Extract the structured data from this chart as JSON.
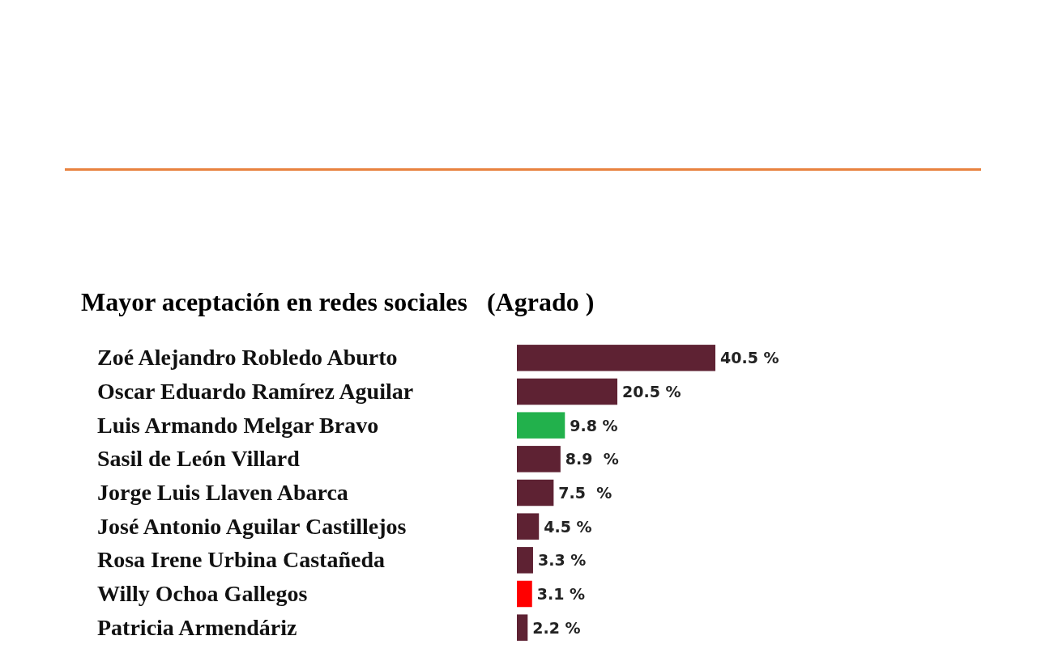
{
  "chart_data": {
    "type": "bar",
    "orientation": "horizontal",
    "title": "Mayor aceptación en redes sociales   (Agrado )",
    "categories": [
      "Zoé Alejandro Robledo Aburto",
      "Oscar Eduardo Ramírez Aguilar",
      "Luis Armando Melgar Bravo",
      "Sasil de León Villard",
      "Jorge Luis Llaven Abarca",
      "José Antonio Aguilar Castillejos",
      "Rosa Irene Urbina Castañeda",
      "Willy Ochoa Gallegos",
      "Patricia Armendáriz"
    ],
    "values": [
      40.5,
      20.5,
      9.8,
      8.9,
      7.5,
      4.5,
      3.3,
      3.1,
      2.2
    ],
    "colors": [
      "#5e2233",
      "#5e2233",
      "#22b14c",
      "#5e2233",
      "#5e2233",
      "#5e2233",
      "#5e2233",
      "#ff0000",
      "#5e2233"
    ],
    "value_labels": [
      "40.5 %",
      "20.5 %",
      "9.8 %",
      "8.9  %",
      "7.5  %",
      "4.5 %",
      "3.3 %",
      "3.1 %",
      "2.2 %"
    ]
  }
}
